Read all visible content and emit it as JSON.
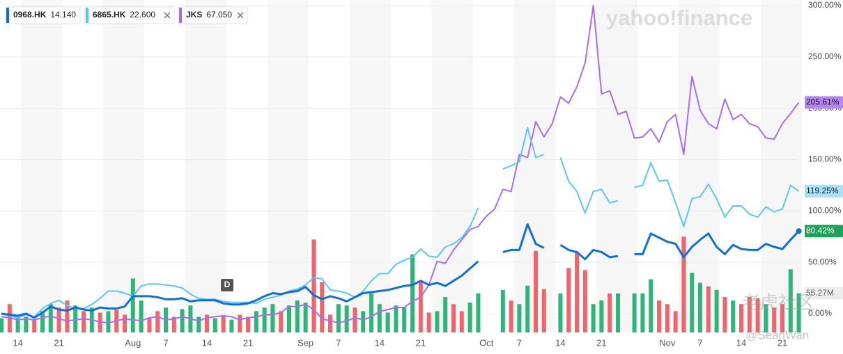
{
  "chart_data": [
    {
      "type": "line",
      "categories": [
        null,
        null,
        "14",
        null,
        null,
        null,
        null,
        "21",
        null,
        null,
        null,
        null,
        null,
        null,
        null,
        null,
        "Aug",
        null,
        null,
        null,
        "7",
        null,
        null,
        null,
        null,
        "14",
        null,
        null,
        null,
        null,
        "21",
        null,
        null,
        null,
        null,
        null,
        null,
        "Sep",
        null,
        null,
        null,
        "7",
        null,
        null,
        null,
        null,
        "14",
        null,
        null,
        null,
        null,
        "21",
        null,
        null,
        null,
        null,
        null,
        null,
        null,
        "Oct",
        null,
        null,
        null,
        "7",
        null,
        null,
        null,
        null,
        "14",
        null,
        null,
        null,
        null,
        "21",
        null,
        null,
        null,
        null,
        null,
        null,
        null,
        "Nov",
        null,
        null,
        null,
        "7",
        null,
        null,
        null,
        null,
        "14",
        null,
        null,
        null,
        null,
        "21",
        null,
        null
      ],
      "ylim": [
        0,
        300
      ],
      "yticks": [
        {
          "value": 0,
          "label": "0.00%"
        },
        {
          "value": 50,
          "label": "50.00%"
        },
        {
          "value": 100,
          "label": "100.00%"
        },
        {
          "value": 150,
          "label": "150.00%"
        },
        {
          "value": 200,
          "label": "200.00%"
        },
        {
          "value": 250,
          "label": "250.00%"
        },
        {
          "value": 300,
          "label": "300.00%"
        }
      ],
      "grid": true,
      "series": [
        {
          "name": "0968.HK",
          "price": "14.140",
          "color": "#0f6fd8",
          "width": 3,
          "tag_color": "#1fa35c",
          "tag_text_color": "#ffffff",
          "end_label": "80.42%",
          "end_dot": true,
          "values": [
            0,
            -1,
            -2,
            0,
            -4,
            1,
            7,
            4,
            3,
            6,
            4,
            3,
            6,
            5,
            5,
            7,
            17,
            17,
            17,
            16,
            14,
            14,
            15,
            12,
            13,
            13,
            13,
            10,
            9,
            9,
            10,
            13,
            17,
            20,
            19,
            21,
            22,
            26,
            18,
            14,
            17,
            15,
            12,
            16,
            20,
            21,
            22,
            23,
            25,
            27,
            28,
            32,
            28,
            30,
            27,
            32,
            37,
            44,
            51,
            null,
            null,
            60,
            62,
            62,
            87,
            68,
            64,
            null,
            67,
            62,
            60,
            53,
            62,
            60,
            55,
            56,
            null,
            58,
            58,
            78,
            74,
            70,
            68,
            55,
            65,
            72,
            78,
            65,
            58,
            67,
            63,
            62,
            62,
            68,
            65,
            63,
            72,
            80.42
          ]
        },
        {
          "name": "6865.HK",
          "price": "22.600",
          "color": "#5cc6f0",
          "width": 2,
          "tag_color": "#a9e2f8",
          "tag_text_color": "#1a1a1a",
          "end_label": "119.25%",
          "removable": true,
          "values": [
            0,
            -2,
            -4,
            -1,
            -3,
            5,
            10,
            13,
            8,
            5,
            5,
            9,
            15,
            22,
            22,
            20,
            17,
            27,
            29,
            29,
            28,
            27,
            25,
            19,
            15,
            14,
            14,
            12,
            11,
            11,
            11,
            10,
            14,
            16,
            18,
            22,
            24,
            28,
            35,
            34,
            23,
            22,
            20,
            16,
            22,
            32,
            39,
            39,
            48,
            52,
            55,
            63,
            56,
            55,
            65,
            68,
            74,
            85,
            103,
            null,
            null,
            141,
            144,
            148,
            181,
            152,
            155,
            null,
            152,
            129,
            119,
            98,
            119,
            121,
            108,
            110,
            null,
            123,
            125,
            147,
            129,
            130,
            108,
            85,
            112,
            114,
            126,
            112,
            94,
            105,
            105,
            97,
            94,
            104,
            99,
            102,
            125,
            119.25
          ]
        },
        {
          "name": "JKS",
          "price": "67.050",
          "color": "#a66ef2",
          "width": 2,
          "tag_color": "#b583f4",
          "tag_text_color": "#1a1a1a",
          "end_label": "205.61%",
          "removable": true,
          "values": [
            -3,
            -4,
            -6,
            -5,
            -6,
            -4,
            -2,
            -5,
            -7,
            -6,
            -5,
            -6,
            -8,
            -9,
            -7,
            -5,
            -6,
            -7,
            -4,
            -3,
            -6,
            -5,
            -3,
            -5,
            -7,
            -4,
            -3,
            -2,
            -3,
            -6,
            -4,
            -3,
            -1,
            -1,
            1,
            7,
            7,
            9,
            4,
            -5,
            -7,
            -9,
            -7,
            -4,
            -6,
            -3,
            2,
            4,
            6,
            6,
            12,
            16,
            28,
            51,
            49,
            62,
            72,
            82,
            85,
            95,
            102,
            121,
            119,
            155,
            152,
            187,
            172,
            185,
            211,
            205,
            221,
            244,
            300,
            214,
            217,
            194,
            197,
            171,
            172,
            180,
            167,
            187,
            194,
            155,
            231,
            198,
            185,
            180,
            209,
            189,
            194,
            185,
            182,
            171,
            170,
            185,
            195,
            205.61
          ]
        }
      ],
      "annotation": "D",
      "watermarks": [
        "yahoo!finance",
        "老虎社区",
        "@SeanWan"
      ]
    },
    {
      "type": "volume",
      "ylim": [
        0,
        150
      ],
      "up_color": "#2db57a",
      "down_color": "#f0646c",
      "end_label": "55.27M",
      "values": [
        20,
        40,
        25,
        22,
        18,
        30,
        40,
        35,
        45,
        38,
        30,
        35,
        28,
        30,
        32,
        25,
        76,
        45,
        20,
        30,
        35,
        22,
        33,
        38,
        22,
        25,
        20,
        24,
        18,
        25,
        22,
        30,
        35,
        40,
        30,
        38,
        45,
        42,
        131,
        71,
        25,
        40,
        38,
        35,
        30,
        55,
        40,
        28,
        38,
        35,
        110,
        71,
        28,
        30,
        50,
        40,
        30,
        42,
        55,
        null,
        null,
        60,
        45,
        40,
        66,
        115,
        61,
        null,
        55,
        91,
        113,
        88,
        40,
        45,
        55,
        55,
        null,
        55,
        55,
        75,
        45,
        40,
        30,
        135,
        84,
        70,
        65,
        60,
        50,
        45,
        40,
        50,
        48,
        40,
        35,
        40,
        89,
        55.27
      ],
      "up": [
        true,
        false,
        true,
        true,
        false,
        true,
        true,
        false,
        false,
        true,
        false,
        true,
        false,
        true,
        false,
        false,
        true,
        true,
        false,
        false,
        true,
        false,
        true,
        true,
        true,
        false,
        true,
        false,
        true,
        false,
        false,
        true,
        true,
        true,
        false,
        true,
        true,
        true,
        false,
        false,
        false,
        true,
        true,
        false,
        true,
        true,
        true,
        true,
        true,
        true,
        true,
        false,
        false,
        true,
        true,
        false,
        false,
        true,
        true,
        null,
        null,
        true,
        false,
        true,
        true,
        false,
        false,
        null,
        true,
        false,
        false,
        false,
        true,
        true,
        false,
        true,
        null,
        true,
        true,
        true,
        false,
        false,
        false,
        false,
        true,
        true,
        false,
        true,
        false,
        true,
        false,
        false,
        false,
        true,
        false,
        false,
        true,
        true
      ]
    }
  ]
}
